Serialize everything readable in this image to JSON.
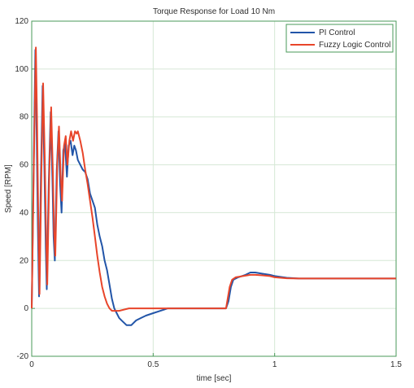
{
  "chart_data": {
    "type": "line",
    "title": "Torque Response for Load 10 Nm",
    "xlabel": "time [sec]",
    "ylabel": "Speed [RPM]",
    "xlim": [
      0,
      1.5
    ],
    "ylim": [
      -20,
      120
    ],
    "xticks": [
      0,
      0.5,
      1,
      1.5
    ],
    "xtick_labels": [
      "0",
      "0.5",
      "1",
      "1.5"
    ],
    "yticks": [
      -20,
      0,
      20,
      40,
      60,
      80,
      100,
      120
    ],
    "ytick_labels": [
      "-20",
      "0",
      "20",
      "40",
      "60",
      "80",
      "100",
      "120"
    ],
    "grid": true,
    "legend_position": "top-right",
    "series": [
      {
        "name": "PI Control",
        "color": "#2255a8",
        "points": [
          [
            0,
            0
          ],
          [
            0.008,
            60
          ],
          [
            0.015,
            108
          ],
          [
            0.02,
            75
          ],
          [
            0.025,
            35
          ],
          [
            0.03,
            5
          ],
          [
            0.038,
            55
          ],
          [
            0.045,
            93
          ],
          [
            0.052,
            60
          ],
          [
            0.058,
            25
          ],
          [
            0.062,
            8
          ],
          [
            0.07,
            52
          ],
          [
            0.078,
            82
          ],
          [
            0.085,
            55
          ],
          [
            0.09,
            30
          ],
          [
            0.095,
            20
          ],
          [
            0.103,
            58
          ],
          [
            0.11,
            74
          ],
          [
            0.117,
            52
          ],
          [
            0.123,
            40
          ],
          [
            0.13,
            66
          ],
          [
            0.137,
            69
          ],
          [
            0.145,
            55
          ],
          [
            0.152,
            68
          ],
          [
            0.16,
            70
          ],
          [
            0.168,
            64
          ],
          [
            0.175,
            68
          ],
          [
            0.182,
            66
          ],
          [
            0.19,
            62
          ],
          [
            0.2,
            60
          ],
          [
            0.21,
            58
          ],
          [
            0.22,
            57
          ],
          [
            0.23,
            54
          ],
          [
            0.24,
            48
          ],
          [
            0.25,
            45
          ],
          [
            0.26,
            42
          ],
          [
            0.27,
            35
          ],
          [
            0.28,
            30
          ],
          [
            0.29,
            26
          ],
          [
            0.3,
            20
          ],
          [
            0.31,
            16
          ],
          [
            0.32,
            10
          ],
          [
            0.33,
            4
          ],
          [
            0.34,
            0
          ],
          [
            0.35,
            -2
          ],
          [
            0.36,
            -4
          ],
          [
            0.37,
            -5
          ],
          [
            0.38,
            -6
          ],
          [
            0.39,
            -7
          ],
          [
            0.4,
            -7
          ],
          [
            0.41,
            -7
          ],
          [
            0.42,
            -6
          ],
          [
            0.43,
            -5
          ],
          [
            0.45,
            -4
          ],
          [
            0.47,
            -3
          ],
          [
            0.5,
            -2
          ],
          [
            0.53,
            -1
          ],
          [
            0.56,
            0
          ],
          [
            0.6,
            0
          ],
          [
            0.7,
            0
          ],
          [
            0.8,
            0
          ],
          [
            0.81,
            3
          ],
          [
            0.82,
            9
          ],
          [
            0.83,
            12
          ],
          [
            0.85,
            13
          ],
          [
            0.88,
            14
          ],
          [
            0.9,
            15
          ],
          [
            0.92,
            15
          ],
          [
            0.95,
            14.5
          ],
          [
            0.98,
            14
          ],
          [
            1.0,
            13.5
          ],
          [
            1.05,
            12.8
          ],
          [
            1.1,
            12.5
          ],
          [
            1.2,
            12.5
          ],
          [
            1.3,
            12.5
          ],
          [
            1.4,
            12.5
          ],
          [
            1.5,
            12.5
          ]
        ]
      },
      {
        "name": "Fuzzy Logic Control",
        "color": "#e8452a",
        "points": [
          [
            0,
            0
          ],
          [
            0.009,
            62
          ],
          [
            0.017,
            109
          ],
          [
            0.022,
            78
          ],
          [
            0.027,
            38
          ],
          [
            0.032,
            6
          ],
          [
            0.04,
            57
          ],
          [
            0.047,
            94
          ],
          [
            0.054,
            62
          ],
          [
            0.06,
            27
          ],
          [
            0.064,
            10
          ],
          [
            0.072,
            55
          ],
          [
            0.08,
            84
          ],
          [
            0.087,
            57
          ],
          [
            0.092,
            32
          ],
          [
            0.097,
            22
          ],
          [
            0.105,
            60
          ],
          [
            0.112,
            76
          ],
          [
            0.119,
            56
          ],
          [
            0.125,
            45
          ],
          [
            0.133,
            68
          ],
          [
            0.14,
            72
          ],
          [
            0.147,
            60
          ],
          [
            0.155,
            70
          ],
          [
            0.162,
            74
          ],
          [
            0.17,
            70
          ],
          [
            0.178,
            74
          ],
          [
            0.185,
            73
          ],
          [
            0.19,
            74
          ],
          [
            0.2,
            70
          ],
          [
            0.21,
            65
          ],
          [
            0.22,
            58
          ],
          [
            0.23,
            52
          ],
          [
            0.24,
            45
          ],
          [
            0.25,
            38
          ],
          [
            0.26,
            30
          ],
          [
            0.27,
            22
          ],
          [
            0.28,
            15
          ],
          [
            0.29,
            9
          ],
          [
            0.3,
            5
          ],
          [
            0.31,
            2
          ],
          [
            0.32,
            0
          ],
          [
            0.33,
            -1
          ],
          [
            0.34,
            -1
          ],
          [
            0.36,
            -1
          ],
          [
            0.4,
            0
          ],
          [
            0.45,
            0
          ],
          [
            0.5,
            0
          ],
          [
            0.6,
            0
          ],
          [
            0.7,
            0
          ],
          [
            0.8,
            0
          ],
          [
            0.805,
            3
          ],
          [
            0.815,
            9
          ],
          [
            0.825,
            12
          ],
          [
            0.84,
            13
          ],
          [
            0.87,
            13.5
          ],
          [
            0.9,
            14
          ],
          [
            0.92,
            14
          ],
          [
            0.95,
            13.8
          ],
          [
            0.98,
            13.5
          ],
          [
            1.0,
            13
          ],
          [
            1.05,
            12.6
          ],
          [
            1.1,
            12.5
          ],
          [
            1.2,
            12.5
          ],
          [
            1.3,
            12.5
          ],
          [
            1.4,
            12.5
          ],
          [
            1.5,
            12.5
          ]
        ]
      }
    ]
  }
}
